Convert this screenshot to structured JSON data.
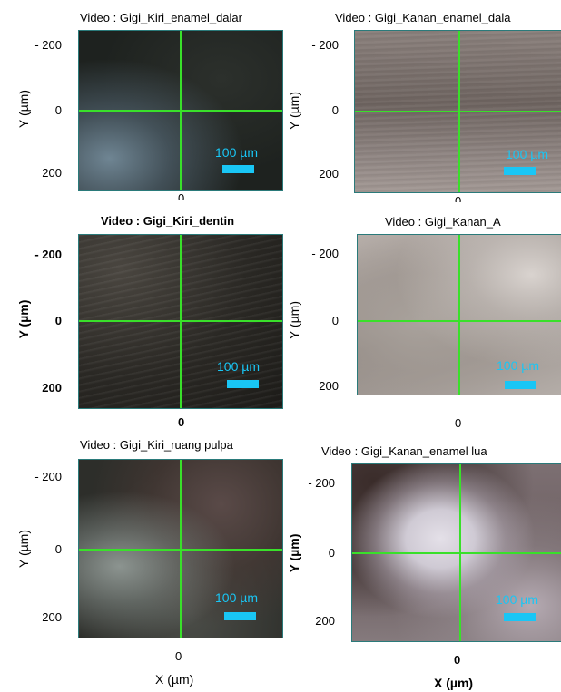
{
  "panels": [
    {
      "title": "Video : Gigi_Kiri_enamel_dalar",
      "scale": "100 µm",
      "ytick_top": "- 200",
      "ytick_mid": "0",
      "ytick_bot": "200",
      "ylabel": "Y (µm)",
      "xtick": "0",
      "xlabel": ""
    },
    {
      "title": "Video : Gigi_Kanan_enamel_dala",
      "scale": "100 µm",
      "ytick_top": "- 200",
      "ytick_mid": "0",
      "ytick_bot": "200",
      "ylabel": "Y (µm)",
      "xtick": "0",
      "xlabel": ""
    },
    {
      "title": "Video : Gigi_Kiri_dentin",
      "scale": "100 µm",
      "ytick_top": "- 200",
      "ytick_mid": "0",
      "ytick_bot": "200",
      "ylabel": "Y (µm)",
      "xtick": "0",
      "xlabel": ""
    },
    {
      "title": "Video : Gigi_Kanan_A",
      "scale": "100 µm",
      "ytick_top": "- 200",
      "ytick_mid": "0",
      "ytick_bot": "200",
      "ylabel": "Y (µm)",
      "xtick": "0",
      "xlabel": ""
    },
    {
      "title": "Video : Gigi_Kiri_ruang pulpa",
      "scale": "100 µm",
      "ytick_top": "- 200",
      "ytick_mid": "0",
      "ytick_bot": "200",
      "ylabel": "Y (µm)",
      "xtick": "0",
      "xlabel": "X (µm)"
    },
    {
      "title": "Video : Gigi_Kanan_enamel lua",
      "scale": "100 µm",
      "ytick_top": "- 200",
      "ytick_mid": "0",
      "ytick_bot": "200",
      "ylabel": "Y (µm)",
      "xtick": "0",
      "xlabel": "X (µm)"
    }
  ],
  "colors": {
    "crosshair": "#39e02a",
    "scale_bar": "#19c6f5"
  }
}
